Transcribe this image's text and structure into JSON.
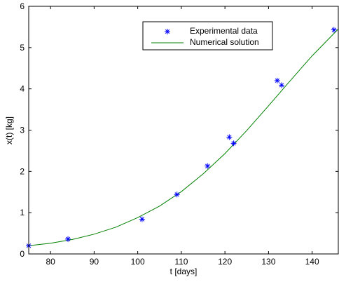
{
  "chart_data": {
    "type": "line",
    "title": "",
    "xlabel": "t [days]",
    "ylabel": "x(t) [kg]",
    "xlim": [
      75,
      146
    ],
    "ylim": [
      0,
      6
    ],
    "x_ticks": [
      80,
      90,
      100,
      110,
      120,
      130,
      140
    ],
    "y_ticks": [
      0,
      1,
      2,
      3,
      4,
      5,
      6
    ],
    "grid": false,
    "legend_position": "top-right",
    "series": [
      {
        "name": "Experimental data",
        "kind": "scatter",
        "marker": "asterisk",
        "color": "#0000ff",
        "points": [
          [
            75,
            0.2
          ],
          [
            84,
            0.36
          ],
          [
            101,
            0.84
          ],
          [
            109,
            1.44
          ],
          [
            116,
            2.13
          ],
          [
            121,
            2.83
          ],
          [
            122,
            2.68
          ],
          [
            132,
            4.2
          ],
          [
            133,
            4.09
          ],
          [
            145,
            5.43
          ]
        ]
      },
      {
        "name": "Numerical solution",
        "kind": "line",
        "color": "#008000",
        "points": [
          [
            75,
            0.2
          ],
          [
            80,
            0.26
          ],
          [
            85,
            0.35
          ],
          [
            90,
            0.48
          ],
          [
            95,
            0.65
          ],
          [
            100,
            0.88
          ],
          [
            105,
            1.16
          ],
          [
            110,
            1.51
          ],
          [
            115,
            1.94
          ],
          [
            120,
            2.43
          ],
          [
            125,
            2.99
          ],
          [
            130,
            3.59
          ],
          [
            135,
            4.2
          ],
          [
            140,
            4.8
          ],
          [
            146,
            5.45
          ]
        ]
      }
    ]
  }
}
